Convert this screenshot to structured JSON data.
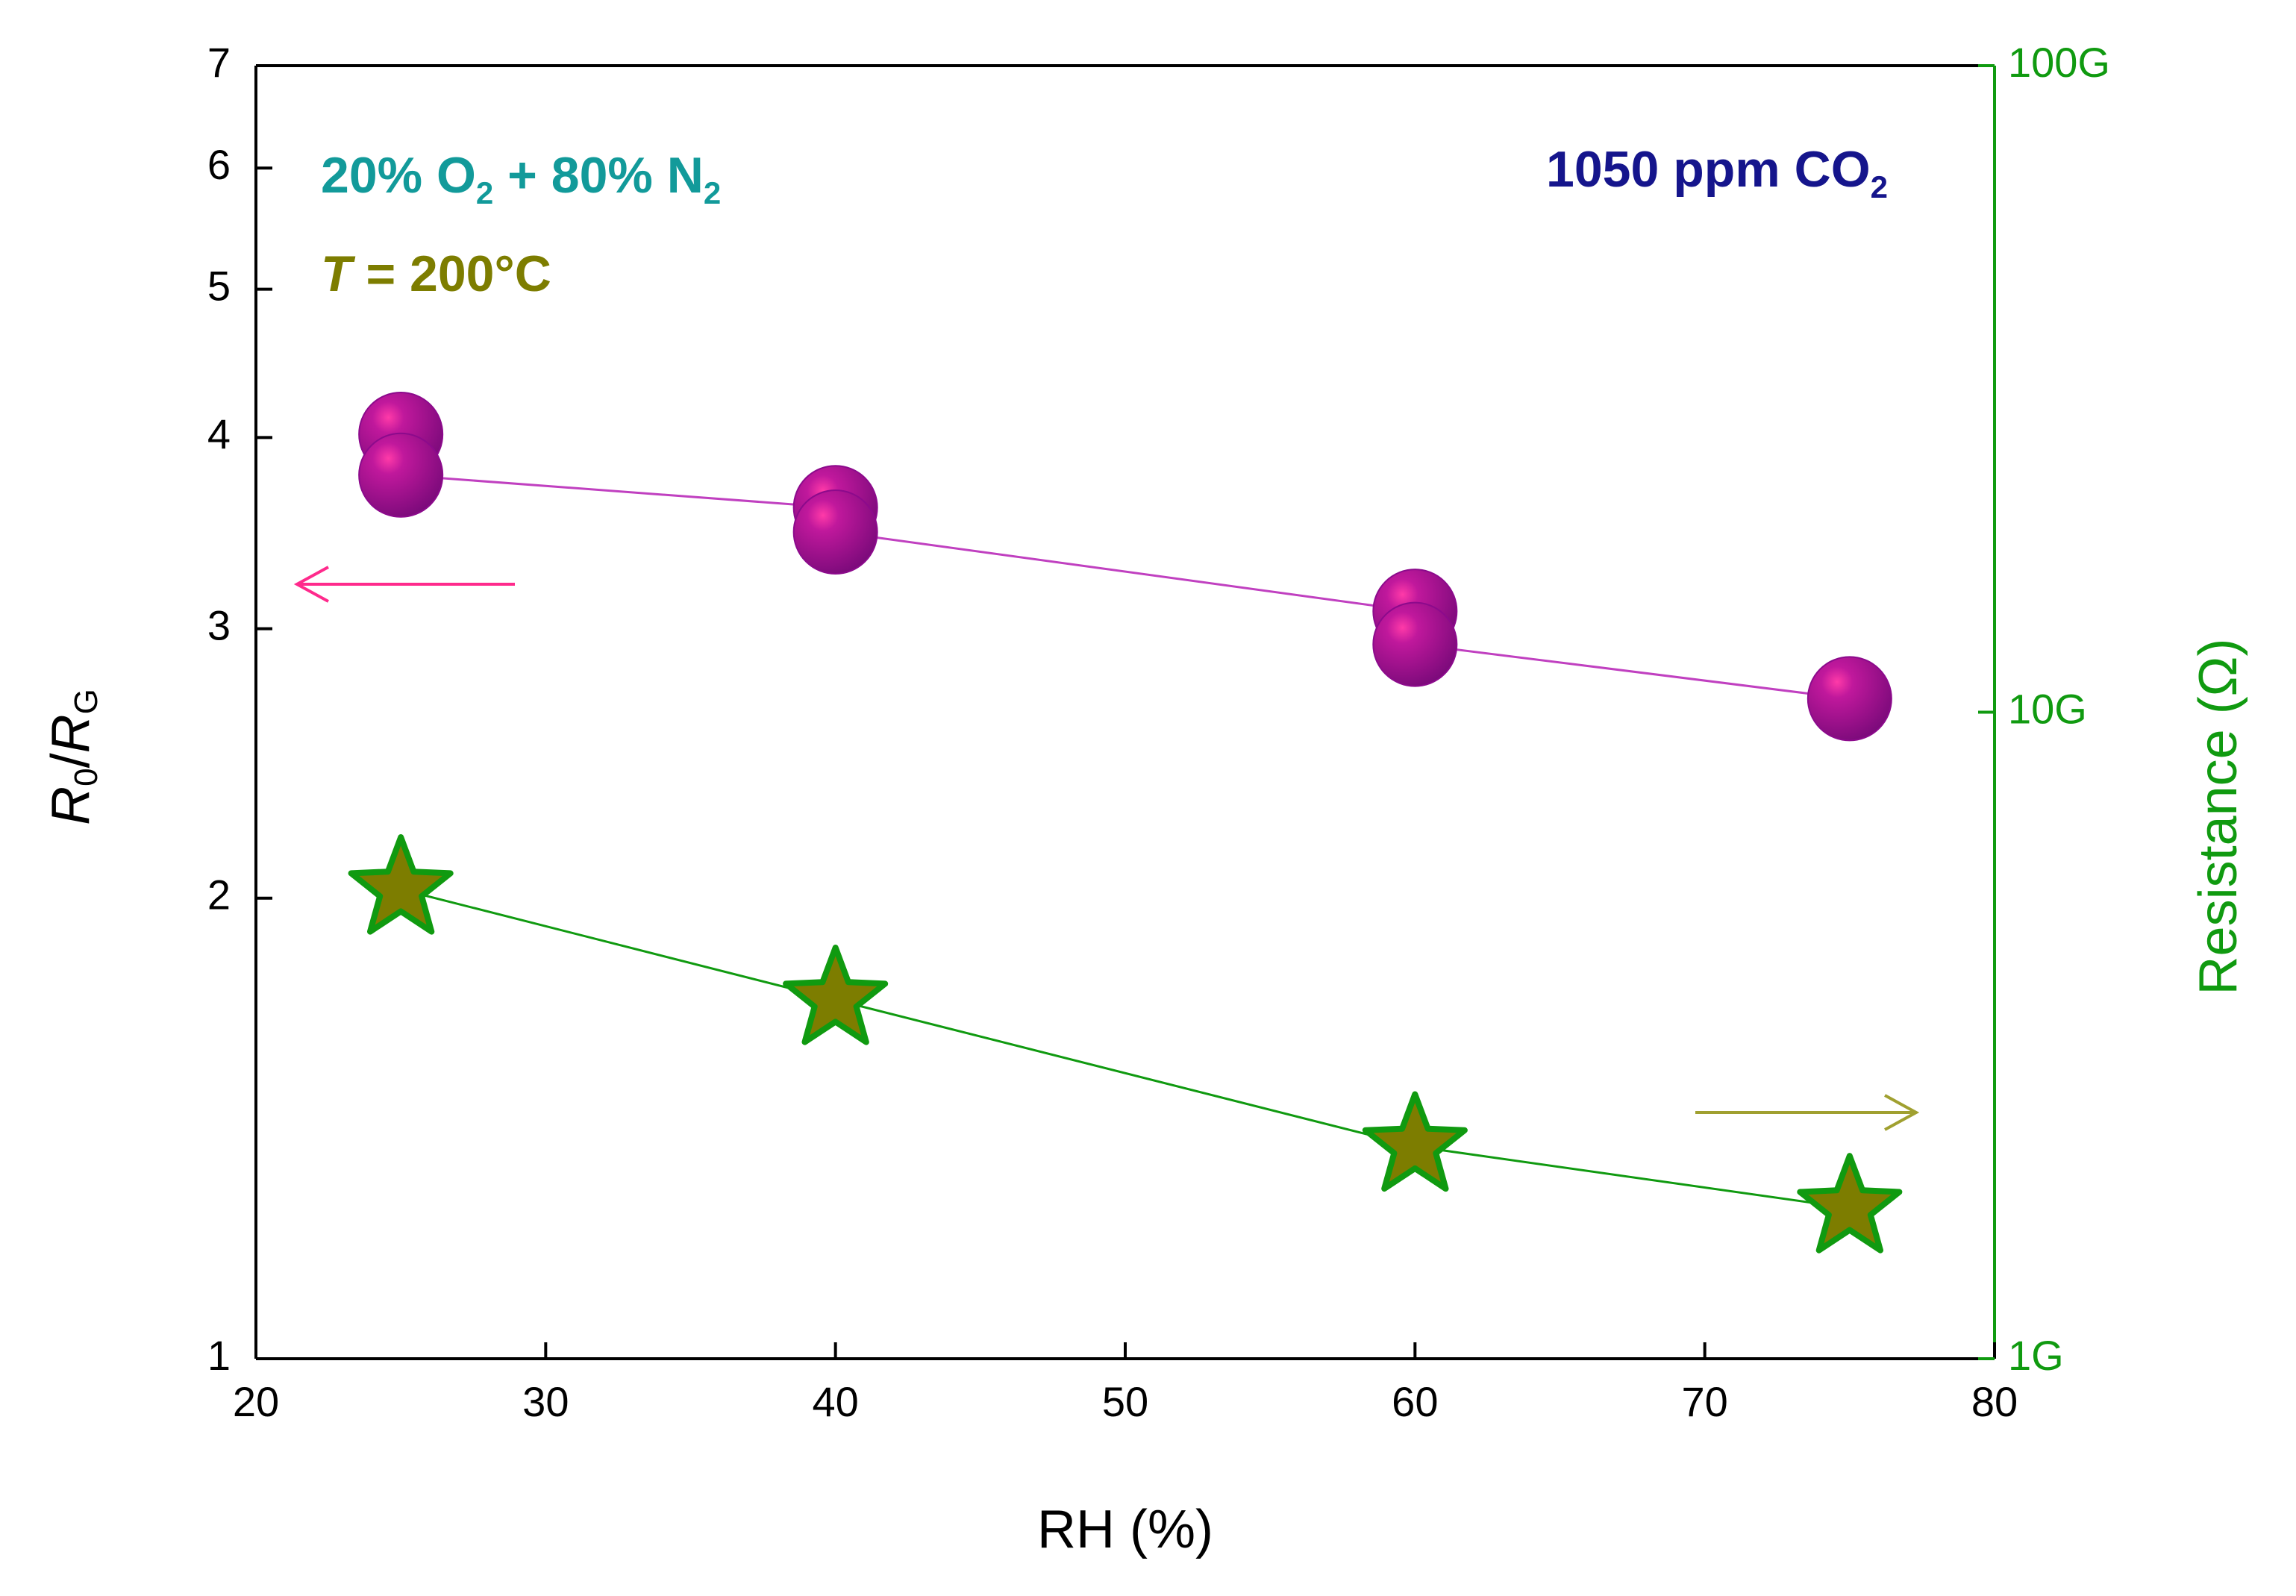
{
  "chart_data": {
    "type": "line",
    "x_label": "RH (%)",
    "y_label": [
      "R",
      "0",
      "/",
      "R",
      "G"
    ],
    "y2_label": "Resistance (Ω)",
    "xlim": [
      20,
      80
    ],
    "xticks": [
      20,
      30,
      40,
      50,
      60,
      70,
      80
    ],
    "ylim": [
      1,
      7
    ],
    "yticks": [
      1,
      2,
      3,
      4,
      5,
      6,
      7
    ],
    "y_scale": "log",
    "y2lim": [
      1000000000,
      100000000000
    ],
    "y2_scale": "log",
    "y2ticks": [
      {
        "value": 1000000000,
        "label": "1G"
      },
      {
        "value": 10000000000,
        "label": "10G"
      },
      {
        "value": 100000000000,
        "label": "100G"
      }
    ],
    "y2_color": "#109a10",
    "annotations": [
      {
        "parts": [
          "20% O",
          "2",
          " + 80% N",
          "2"
        ],
        "color": "#129a9a"
      },
      {
        "parts": [
          "T",
          " = 200°C"
        ],
        "color": "#7d7d00"
      },
      {
        "parts": [
          "1050 ppm CO",
          "2"
        ],
        "color": "#15158c"
      }
    ],
    "series": [
      {
        "marker": "circle",
        "color": "#8c0a8c",
        "line_color": "#c040c0",
        "x": [
          25,
          25,
          40,
          40,
          60,
          60,
          75
        ],
        "values": [
          4.02,
          3.78,
          3.6,
          3.47,
          3.08,
          2.93,
          2.7
        ]
      },
      {
        "marker": "star",
        "axis": "y2",
        "color": "#7d7d00",
        "line_color": "#109a10",
        "x": [
          25,
          40,
          60,
          75
        ],
        "values": [
          5320000000,
          3590000000,
          2130000000,
          1710000000
        ]
      }
    ]
  }
}
